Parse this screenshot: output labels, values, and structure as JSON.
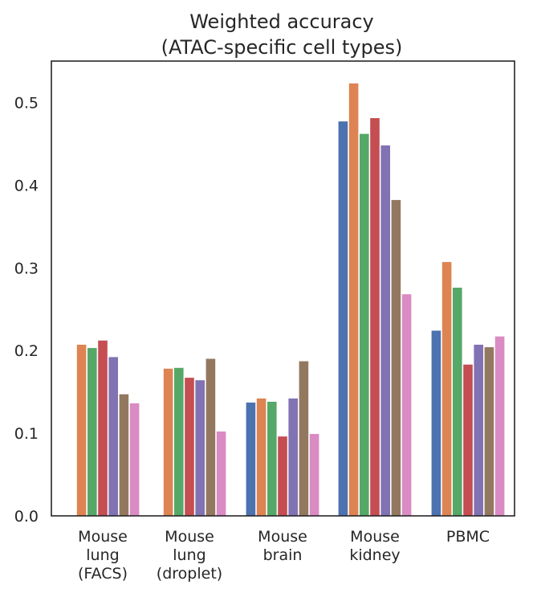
{
  "chart_data": {
    "type": "bar",
    "title": "Weighted accuracy",
    "subtitle": "(ATAC-specific cell types)",
    "xlabel": "",
    "ylabel": "",
    "ylim": [
      0,
      0.55
    ],
    "yticks": [
      "0.0",
      "0.1",
      "0.2",
      "0.3",
      "0.4",
      "0.5"
    ],
    "grid": false,
    "legend": "none",
    "categories": [
      [
        "Mouse",
        "lung",
        "(FACS)"
      ],
      [
        "Mouse",
        "lung",
        "(droplet)"
      ],
      [
        "Mouse",
        "brain"
      ],
      [
        "Mouse",
        "kidney"
      ],
      [
        "PBMC"
      ]
    ],
    "series": [
      {
        "color": "#4c72b0",
        "values": [
          null,
          null,
          0.137,
          0.477,
          0.224
        ]
      },
      {
        "color": "#dd8452",
        "values": [
          0.207,
          0.178,
          0.142,
          0.523,
          0.307
        ]
      },
      {
        "color": "#55a868",
        "values": [
          0.203,
          0.179,
          0.138,
          0.462,
          0.276
        ]
      },
      {
        "color": "#c44e52",
        "values": [
          0.212,
          0.167,
          0.096,
          0.481,
          0.183
        ]
      },
      {
        "color": "#8172b3",
        "values": [
          0.192,
          0.164,
          0.142,
          0.448,
          0.207
        ]
      },
      {
        "color": "#937860",
        "values": [
          0.147,
          0.19,
          0.187,
          0.382,
          0.204
        ]
      },
      {
        "color": "#da8bc3",
        "values": [
          0.136,
          0.102,
          0.099,
          0.268,
          0.217
        ]
      }
    ]
  }
}
